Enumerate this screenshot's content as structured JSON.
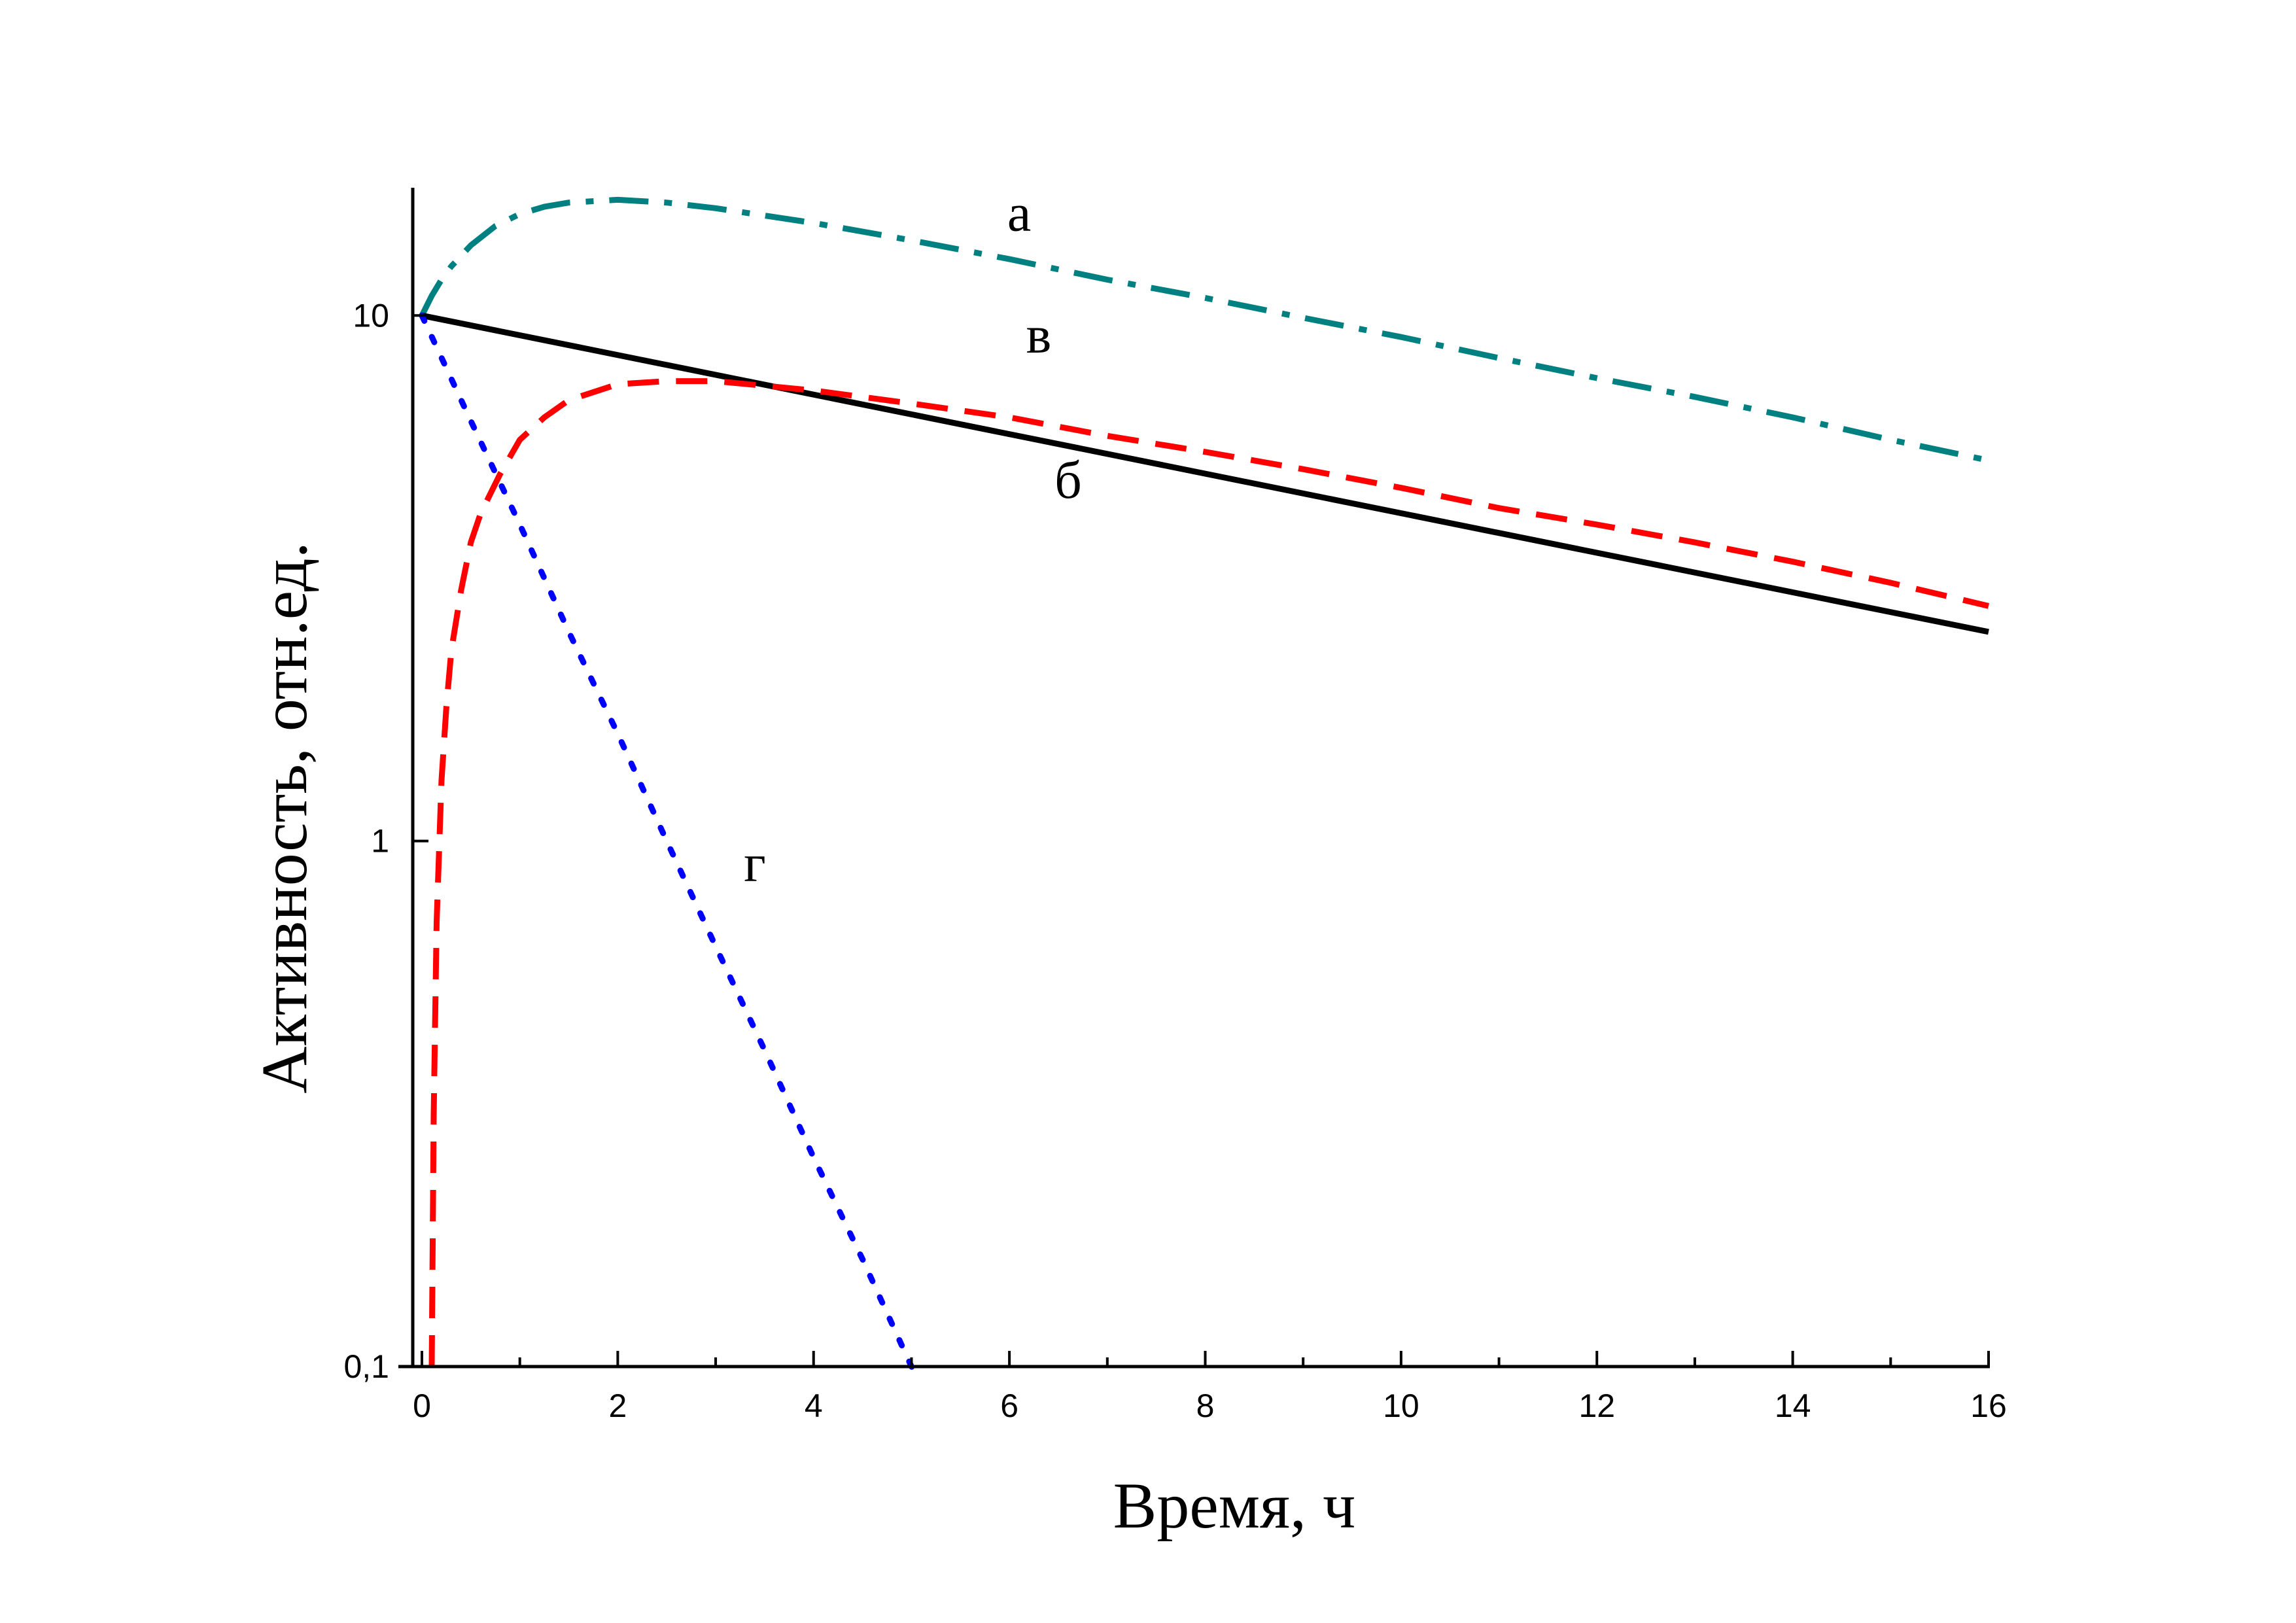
{
  "chart_data": {
    "type": "line",
    "xlabel": "Время, ч",
    "ylabel": "Активность, отн.ед.",
    "xlim": [
      0,
      16
    ],
    "ylim": [
      0.1,
      17.5
    ],
    "yscale": "log",
    "x_ticks": [
      0,
      2,
      4,
      6,
      8,
      10,
      12,
      14,
      16
    ],
    "x_tick_labels": [
      "0",
      "2",
      "4",
      "6",
      "8",
      "10",
      "12",
      "14",
      "16"
    ],
    "y_ticks": [
      0.1,
      1,
      10
    ],
    "y_tick_labels": [
      "0,1",
      "1",
      "10"
    ],
    "grid": false,
    "legend": "none",
    "series": [
      {
        "name": "а",
        "color": "#008080",
        "dash": "dash-dot",
        "x": [
          0,
          0.1,
          0.2,
          0.3,
          0.5,
          0.75,
          1,
          1.25,
          1.5,
          2,
          2.5,
          3,
          4,
          5,
          6,
          7,
          8,
          9,
          10,
          11,
          12,
          13,
          14,
          15,
          16
        ],
        "y": [
          10.0,
          10.9,
          11.7,
          12.4,
          13.6,
          14.8,
          15.6,
          16.1,
          16.4,
          16.6,
          16.4,
          16.0,
          15.0,
          13.9,
          12.8,
          11.7,
          10.8,
          9.9,
          9.1,
          8.3,
          7.6,
          7.0,
          6.4,
          5.8,
          5.3
        ]
      },
      {
        "name": "б",
        "color": "#000000",
        "dash": "solid",
        "x": [
          0,
          16
        ],
        "y": [
          10.0,
          2.5
        ]
      },
      {
        "name": "в",
        "color": "#ff0000",
        "dash": "dash",
        "x": [
          0.1,
          0.12,
          0.15,
          0.2,
          0.25,
          0.3,
          0.4,
          0.5,
          0.6,
          0.8,
          1,
          1.25,
          1.5,
          2,
          2.5,
          3,
          4,
          5,
          6,
          7,
          8,
          9,
          10,
          11,
          12,
          13,
          14,
          15,
          16
        ],
        "y": [
          0.1,
          0.3,
          0.7,
          1.3,
          1.8,
          2.3,
          3.0,
          3.7,
          4.2,
          5.0,
          5.8,
          6.4,
          6.9,
          7.4,
          7.5,
          7.5,
          7.2,
          6.8,
          6.4,
          5.9,
          5.5,
          5.1,
          4.7,
          4.3,
          4.0,
          3.7,
          3.4,
          3.1,
          2.8
        ]
      },
      {
        "name": "г",
        "color": "#0000ff",
        "dash": "dot",
        "x": [
          0,
          0.5,
          1,
          1.5,
          2,
          2.5,
          3,
          3.5,
          4,
          4.5,
          5,
          5.1
        ],
        "y": [
          10.0,
          6.3,
          4.0,
          2.5,
          1.6,
          1.0,
          0.63,
          0.4,
          0.25,
          0.16,
          0.1,
          0.095
        ]
      }
    ],
    "annotations": [
      {
        "text": "а",
        "x": 6.1,
        "y": 14.5
      },
      {
        "text": "в",
        "x": 6.3,
        "y": 8.5
      },
      {
        "text": "б",
        "x": 6.6,
        "y": 4.5
      },
      {
        "text": "г",
        "x": 3.4,
        "y": 0.84
      }
    ]
  }
}
